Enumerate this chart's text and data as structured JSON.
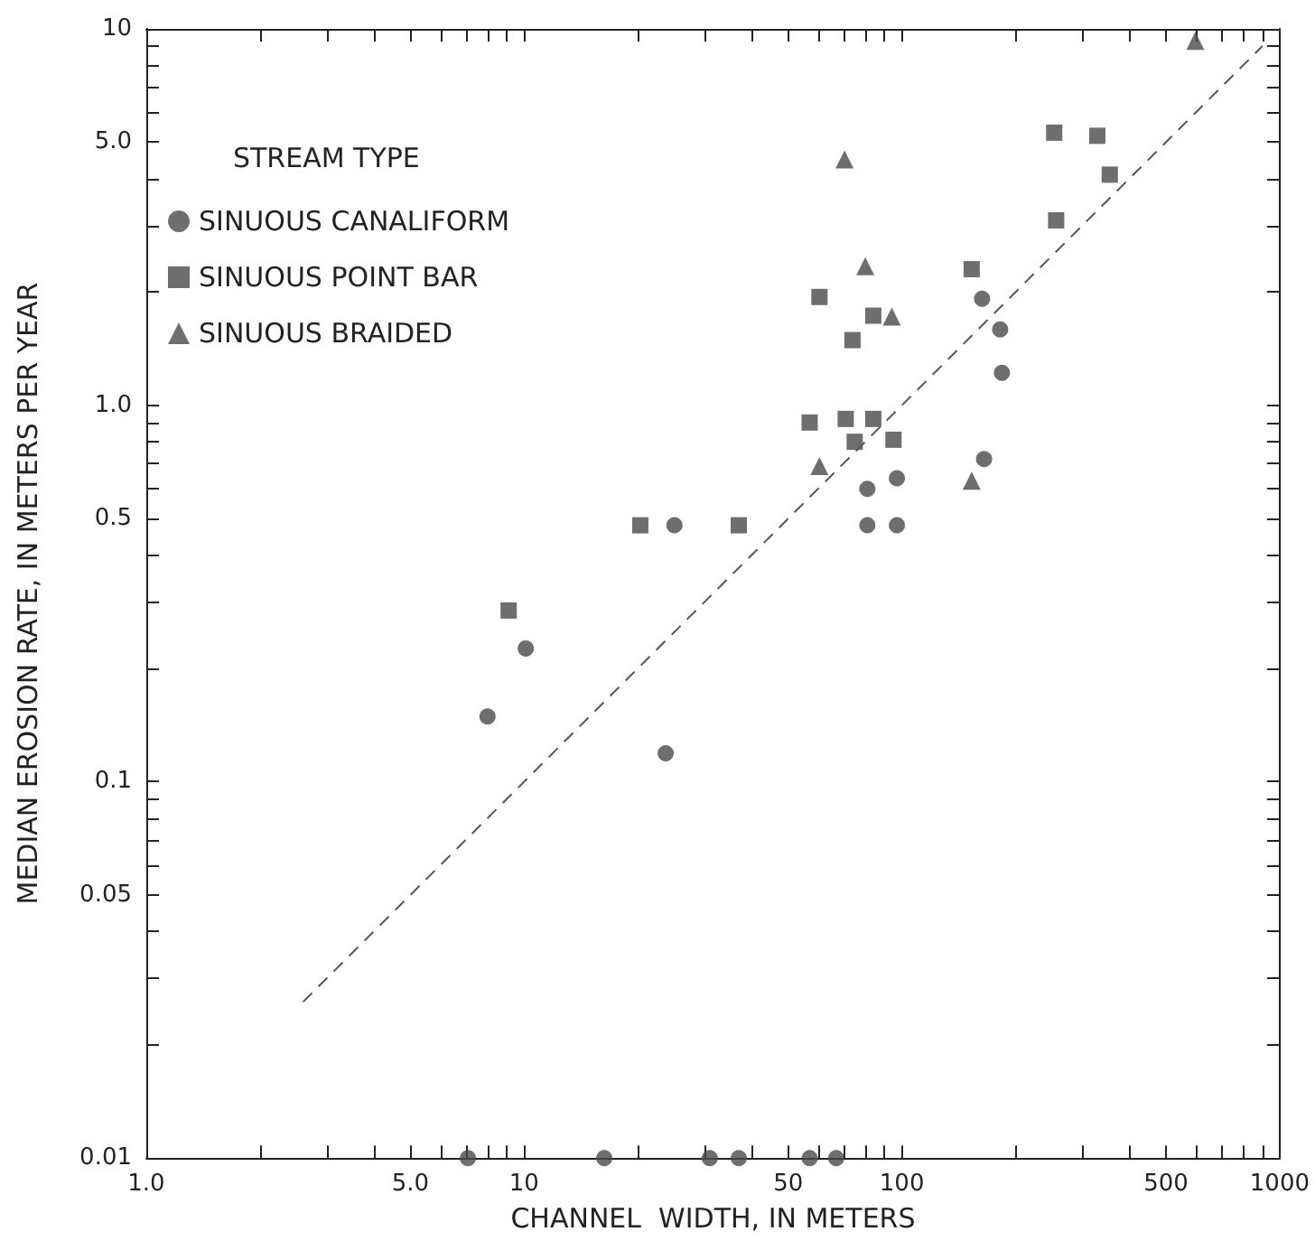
{
  "chart_data": {
    "type": "scatter",
    "xlabel": "CHANNEL  WIDTH, IN METERS",
    "ylabel": "MEDIAN EROSION RATE, IN METERS PER YEAR",
    "legend_title": "STREAM TYPE",
    "legend": "top left",
    "grid": false,
    "log": "xy",
    "xlim": [
      1,
      1000
    ],
    "ylim": [
      0.01,
      10
    ],
    "xticks": [
      {
        "value": 1,
        "label": "1.0"
      },
      {
        "value": 2,
        "label": null
      },
      {
        "value": 3,
        "label": null
      },
      {
        "value": 4,
        "label": null
      },
      {
        "value": 5,
        "label": "5.0"
      },
      {
        "value": 6,
        "label": null
      },
      {
        "value": 7,
        "label": null
      },
      {
        "value": 8,
        "label": null
      },
      {
        "value": 9,
        "label": null
      },
      10,
      {
        "value": 20,
        "label": null
      },
      {
        "value": 30,
        "label": null
      },
      {
        "value": 40,
        "label": null
      },
      50,
      {
        "value": 60,
        "label": null
      },
      {
        "value": 70,
        "label": null
      },
      {
        "value": 80,
        "label": null
      },
      {
        "value": 90,
        "label": null
      },
      100,
      {
        "value": 200,
        "label": null
      },
      {
        "value": 300,
        "label": null
      },
      {
        "value": 400,
        "label": null
      },
      500,
      {
        "value": 600,
        "label": null
      },
      {
        "value": 700,
        "label": null
      },
      {
        "value": 800,
        "label": null
      },
      {
        "value": 900,
        "label": null
      },
      1000
    ],
    "yticks": [
      0.01,
      {
        "value": 0.02,
        "label": null
      },
      {
        "value": 0.03,
        "label": null
      },
      {
        "value": 0.04,
        "label": null
      },
      0.05,
      {
        "value": 0.06,
        "label": null
      },
      {
        "value": 0.07,
        "label": null
      },
      {
        "value": 0.08,
        "label": null
      },
      {
        "value": 0.09,
        "label": null
      },
      0.1,
      {
        "value": 0.2,
        "label": null
      },
      {
        "value": 0.3,
        "label": null
      },
      {
        "value": 0.4,
        "label": null
      },
      0.5,
      {
        "value": 0.6,
        "label": null
      },
      {
        "value": 0.7,
        "label": null
      },
      {
        "value": 0.8,
        "label": null
      },
      {
        "value": 0.9,
        "label": null
      },
      {
        "value": 1,
        "label": "1.0"
      },
      {
        "value": 2,
        "label": null
      },
      {
        "value": 3,
        "label": null
      },
      {
        "value": 4,
        "label": null
      },
      {
        "value": 5,
        "label": "5.0"
      },
      {
        "value": 6,
        "label": null
      },
      {
        "value": 7,
        "label": null
      },
      {
        "value": 8,
        "label": null
      },
      {
        "value": 9,
        "label": null
      },
      10
    ],
    "series": [
      {
        "name": "SINUOUS CANALIFORM",
        "marker": "circle",
        "color": "#4a4a4a",
        "x": [
          163,
          182,
          184,
          165,
          81,
          97,
          81,
          97,
          25,
          10.1,
          8.0,
          23.7,
          7.1,
          16.3,
          31,
          37,
          57,
          67
        ],
        "values": [
          1.92,
          1.59,
          1.22,
          0.72,
          0.6,
          0.64,
          0.48,
          0.48,
          0.48,
          0.226,
          0.149,
          0.119,
          0.01,
          0.01,
          0.01,
          0.01,
          0.01,
          0.01
        ]
      },
      {
        "name": "SINUOUS POINT BAR",
        "marker": "square",
        "color": "#4a4a4a",
        "x": [
          253,
          329,
          355,
          256,
          153,
          60.5,
          84,
          74,
          57,
          71,
          84,
          75,
          95,
          20.3,
          37,
          9.1
        ],
        "values": [
          5.3,
          5.2,
          4.1,
          3.1,
          2.3,
          1.94,
          1.73,
          1.49,
          0.9,
          0.92,
          0.92,
          0.8,
          0.81,
          0.48,
          0.48,
          0.285
        ]
      },
      {
        "name": "SINUOUS BRAIDED",
        "marker": "triangle",
        "color": "#4a4a4a",
        "x": [
          598,
          70.5,
          80,
          94,
          60.5,
          153
        ],
        "values": [
          9.3,
          4.5,
          2.34,
          1.72,
          0.69,
          0.63
        ]
      },
      {
        "type": "line",
        "marker": "none",
        "line_style": "dashed",
        "color": "#555555",
        "x": [
          2.6,
          900
        ],
        "values": [
          0.026,
          9.0
        ]
      }
    ]
  }
}
